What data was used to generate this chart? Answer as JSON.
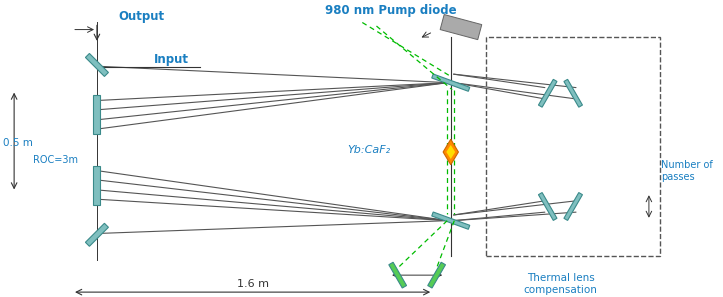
{
  "bg_color": "#ffffff",
  "text_color_blue": "#1a7fc1",
  "text_color_dark": "#222222",
  "mirror_color": "#7fbfbf",
  "beam_color": "#555555",
  "pump_color": "#00cc00",
  "crystal_color_orange": "#ff8c00",
  "crystal_color_yellow": "#ffcc00",
  "figsize": [
    7.23,
    2.97
  ],
  "dpi": 100,
  "labels": {
    "output": "Output",
    "input": "Input",
    "half_meter": "0.5 m",
    "roc": "ROC=3m",
    "pump": "980 nm Pump diode",
    "crystal": "Yb:CaF₂",
    "num_passes": "Number of\npasses",
    "thermal": "Thermal lens\ncompensation",
    "scale": "1.6 m"
  }
}
